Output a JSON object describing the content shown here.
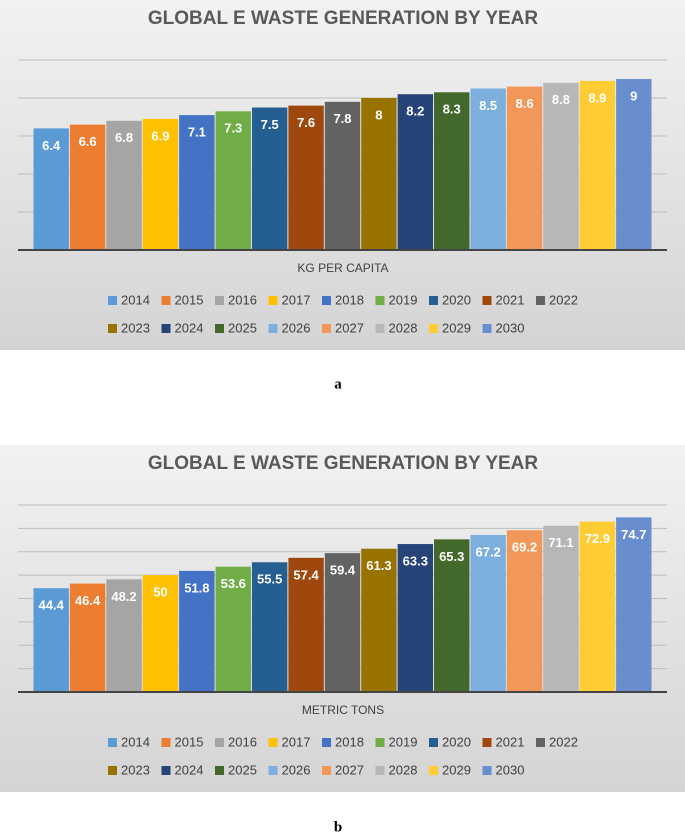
{
  "chart_data": [
    {
      "type": "bar",
      "title": "GLOBAL E WASTE GENERATION BY YEAR",
      "x_label": "KG PER CAPITA",
      "caption": "a",
      "categories": [
        "2014",
        "2015",
        "2016",
        "2017",
        "2018",
        "2019",
        "2020",
        "2021",
        "2022",
        "2023",
        "2024",
        "2025",
        "2026",
        "2027",
        "2028",
        "2029",
        "2030"
      ],
      "values": [
        6.4,
        6.6,
        6.8,
        6.9,
        7.1,
        7.3,
        7.5,
        7.6,
        7.8,
        8,
        8.2,
        8.3,
        8.5,
        8.6,
        8.8,
        8.9,
        9
      ],
      "colors": [
        "#5b9bd5",
        "#ed7d31",
        "#a5a5a5",
        "#ffc000",
        "#4472c4",
        "#70ad47",
        "#255e91",
        "#9e480e",
        "#636363",
        "#997300",
        "#264478",
        "#43682b",
        "#7cafdd",
        "#f1975a",
        "#b7b7b7",
        "#ffcd33",
        "#698ed0"
      ],
      "ylim": [
        0,
        10
      ],
      "gridlines": [
        2,
        4,
        6,
        8,
        10
      ],
      "legend": "bottom"
    },
    {
      "type": "bar",
      "title": "GLOBAL E WASTE GENERATION BY YEAR",
      "x_label": "METRIC TONS",
      "caption": "b",
      "categories": [
        "2014",
        "2015",
        "2016",
        "2017",
        "2018",
        "2019",
        "2020",
        "2021",
        "2022",
        "2023",
        "2024",
        "2025",
        "2026",
        "2027",
        "2028",
        "2029",
        "2030"
      ],
      "values": [
        44.4,
        46.4,
        48.2,
        50,
        51.8,
        53.6,
        55.5,
        57.4,
        59.4,
        61.3,
        63.3,
        65.3,
        67.2,
        69.2,
        71.1,
        72.9,
        74.7
      ],
      "colors": [
        "#5b9bd5",
        "#ed7d31",
        "#a5a5a5",
        "#ffc000",
        "#4472c4",
        "#70ad47",
        "#255e91",
        "#9e480e",
        "#636363",
        "#997300",
        "#264478",
        "#43682b",
        "#7cafdd",
        "#f1975a",
        "#b7b7b7",
        "#ffcd33",
        "#698ed0"
      ],
      "ylim": [
        0,
        80
      ],
      "gridlines": [
        10,
        20,
        30,
        40,
        50,
        60,
        70,
        80
      ],
      "legend": "bottom"
    }
  ]
}
